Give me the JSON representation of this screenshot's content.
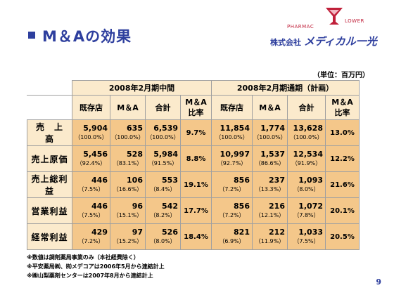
{
  "slide": {
    "title": "M＆Aの効果",
    "unit": "（単位：百万円）",
    "page_number": "9",
    "logo": {
      "pharmac": "PHARMAC",
      "lower": "LOWER",
      "company_prefix": "株式会社",
      "company_name": "メディカル一光"
    }
  },
  "table": {
    "period1": "2008年2月期中間",
    "period2": "2008年2月期通期（計画）",
    "columns": [
      "既存店",
      "M＆A",
      "合計",
      "M＆A",
      "比率",
      "既存店",
      "M＆A",
      "合計",
      "M＆A",
      "比率"
    ],
    "rows": [
      {
        "label": "売　上　高",
        "p1": [
          {
            "v": "5,904",
            "p": "（100.0%）"
          },
          {
            "v": "635",
            "p": "（100.0%）"
          },
          {
            "v": "6,539",
            "p": "（100.0%）"
          }
        ],
        "r1": "9.7%",
        "p2": [
          {
            "v": "11,854",
            "p": "（100.0%）"
          },
          {
            "v": "1,774",
            "p": "（100.0%）"
          },
          {
            "v": "13,628",
            "p": "（100.0%）"
          }
        ],
        "r2": "13.0%"
      },
      {
        "label": "売上原価",
        "p1": [
          {
            "v": "5,456",
            "p": "（92.4%）"
          },
          {
            "v": "528",
            "p": "（83.1%）"
          },
          {
            "v": "5,984",
            "p": "（91.5%）"
          }
        ],
        "r1": "8.8%",
        "p2": [
          {
            "v": "10,997",
            "p": "（92.7%）"
          },
          {
            "v": "1,537",
            "p": "（86.6%）"
          },
          {
            "v": "12,534",
            "p": "（91.9%）"
          }
        ],
        "r2": "12.2%"
      },
      {
        "label": "売上総利益",
        "p1": [
          {
            "v": "446",
            "p": "（7.5%）"
          },
          {
            "v": "106",
            "p": "（16.6%）"
          },
          {
            "v": "553",
            "p": "（8.4%）"
          }
        ],
        "r1": "19.1%",
        "p2": [
          {
            "v": "856",
            "p": "（7.2%）"
          },
          {
            "v": "237",
            "p": "（13.3%）"
          },
          {
            "v": "1,093",
            "p": "（8.0%）"
          }
        ],
        "r2": "21.6%"
      },
      {
        "label": "営業利益",
        "p1": [
          {
            "v": "446",
            "p": "（7.5%）"
          },
          {
            "v": "96",
            "p": "（15.1%）"
          },
          {
            "v": "542",
            "p": "（8.2%）"
          }
        ],
        "r1": "17.7%",
        "p2": [
          {
            "v": "856",
            "p": "（7.2%）"
          },
          {
            "v": "216",
            "p": "（12.1%）"
          },
          {
            "v": "1,072",
            "p": "（7.8%）"
          }
        ],
        "r2": "20.1%"
      },
      {
        "label": "経常利益",
        "p1": [
          {
            "v": "429",
            "p": "（7.2%）"
          },
          {
            "v": "97",
            "p": "（15.2%）"
          },
          {
            "v": "526",
            "p": "（8.0%）"
          }
        ],
        "r1": "18.4%",
        "p2": [
          {
            "v": "821",
            "p": "（6.9%）"
          },
          {
            "v": "212",
            "p": "（11.9%）"
          },
          {
            "v": "1,033",
            "p": "（7.5%）"
          }
        ],
        "r2": "20.5%"
      }
    ]
  },
  "notes": [
    "※数値は調剤薬局事業のみ（本社経費除く）",
    "※平安薬局㈱、㈲メデコアは2006年5月から連結計上",
    "※㈱山梨薬剤センターは2007年8月から連結計上"
  ],
  "colors": {
    "accent_blue": "#2e3f9e",
    "header_fill": "#fbeacc",
    "cell_fill": "#f4c78a",
    "logo_red": "#c0203a"
  }
}
